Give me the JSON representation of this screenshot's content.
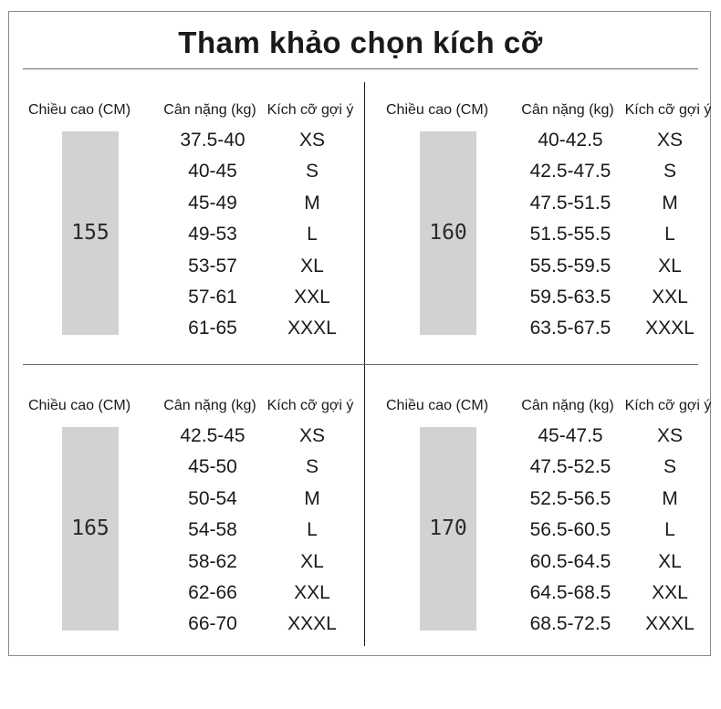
{
  "title": "Tham khảo chọn kích cỡ",
  "headers": {
    "height": "Chiều cao (CM)",
    "weight": "Cân nặng (kg)",
    "size": "Kích cỡ gợi ý"
  },
  "panels": [
    {
      "height": "155",
      "rows": [
        {
          "weight": "37.5-40",
          "size": "XS"
        },
        {
          "weight": "40-45",
          "size": "S"
        },
        {
          "weight": "45-49",
          "size": "M"
        },
        {
          "weight": "49-53",
          "size": "L"
        },
        {
          "weight": "53-57",
          "size": "XL"
        },
        {
          "weight": "57-61",
          "size": "XXL"
        },
        {
          "weight": "61-65",
          "size": "XXXL"
        }
      ]
    },
    {
      "height": "160",
      "rows": [
        {
          "weight": "40-42.5",
          "size": "XS"
        },
        {
          "weight": "42.5-47.5",
          "size": "S"
        },
        {
          "weight": "47.5-51.5",
          "size": "M"
        },
        {
          "weight": "51.5-55.5",
          "size": "L"
        },
        {
          "weight": "55.5-59.5",
          "size": "XL"
        },
        {
          "weight": "59.5-63.5",
          "size": "XXL"
        },
        {
          "weight": "63.5-67.5",
          "size": "XXXL"
        }
      ]
    },
    {
      "height": "165",
      "rows": [
        {
          "weight": "42.5-45",
          "size": "XS"
        },
        {
          "weight": "45-50",
          "size": "S"
        },
        {
          "weight": "50-54",
          "size": "M"
        },
        {
          "weight": "54-58",
          "size": "L"
        },
        {
          "weight": "58-62",
          "size": "XL"
        },
        {
          "weight": "62-66",
          "size": "XXL"
        },
        {
          "weight": "66-70",
          "size": "XXXL"
        }
      ]
    },
    {
      "height": "170",
      "rows": [
        {
          "weight": "45-47.5",
          "size": "XS"
        },
        {
          "weight": "47.5-52.5",
          "size": "S"
        },
        {
          "weight": "52.5-56.5",
          "size": "M"
        },
        {
          "weight": "56.5-60.5",
          "size": "L"
        },
        {
          "weight": "60.5-64.5",
          "size": "XL"
        },
        {
          "weight": "64.5-68.5",
          "size": "XXL"
        },
        {
          "weight": "68.5-72.5",
          "size": "XXXL"
        }
      ]
    }
  ]
}
